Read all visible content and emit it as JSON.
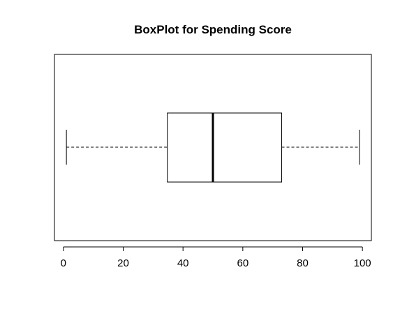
{
  "chart_data": {
    "type": "boxplot",
    "title": "BoxPlot for Spending Score",
    "orientation": "horizontal",
    "xlabel": "",
    "ylabel": "",
    "xlim": [
      -3,
      103
    ],
    "ticks": [
      0,
      20,
      40,
      60,
      80,
      100
    ],
    "tick_labels": [
      "0",
      "20",
      "40",
      "60",
      "80",
      "100"
    ],
    "grid": false,
    "box": {
      "whisker_low": 1,
      "q1": 34.75,
      "median": 50,
      "q3": 73,
      "whisker_high": 99
    },
    "colors": {
      "line": "#000000",
      "box_fill": "#ffffff"
    }
  }
}
